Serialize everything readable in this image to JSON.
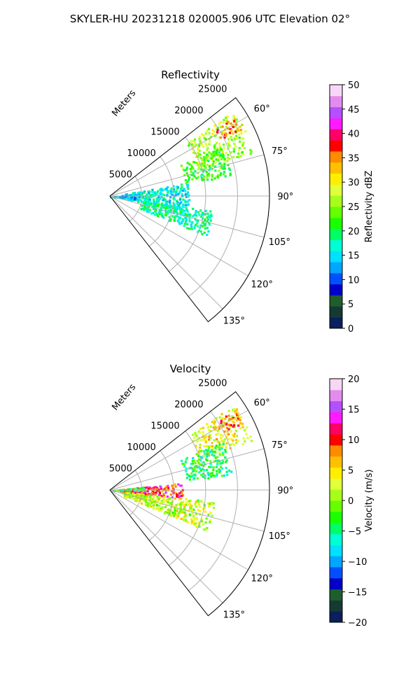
{
  "figure_title": "SKYLER-HU  20231218  020005.906 UTC Elevation 02°",
  "chart_data": [
    {
      "type": "heatmap",
      "projection": "polar-sector",
      "title": "Reflectivity",
      "radial_axis_label": "Meters",
      "radial_ticks": [
        5000,
        10000,
        15000,
        20000,
        25000
      ],
      "radial_tick_labels": [
        "5000",
        "10000",
        "15000",
        "20000",
        "25000"
      ],
      "azimuth_ticks": [
        60,
        75,
        90,
        105,
        120,
        135
      ],
      "azimuth_tick_labels": [
        "60°",
        "75°",
        "90°",
        "105°",
        "120°",
        "135°"
      ],
      "azimuth_range": [
        52,
        142
      ],
      "range_max": 25000,
      "colorbar": {
        "label": "Reflectivity dBZ",
        "range": [
          0,
          50
        ],
        "ticks": [
          0,
          5,
          10,
          15,
          20,
          25,
          30,
          35,
          40,
          45,
          50
        ],
        "tick_labels": [
          "0",
          "5",
          "10",
          "15",
          "20",
          "25",
          "30",
          "35",
          "40",
          "45",
          "50"
        ],
        "colors": [
          "#0a1f5c",
          "#153a34",
          "#1e5e2c",
          "#0000c8",
          "#0050ff",
          "#00a6ff",
          "#00e0ff",
          "#00ffd2",
          "#00ff64",
          "#1aff00",
          "#66ff00",
          "#a6ff1a",
          "#e1ff3a",
          "#ffee00",
          "#ffc000",
          "#ff8c00",
          "#ff0000",
          "#ff0066",
          "#ff1aff",
          "#b450ff",
          "#e48cee",
          "#f7d7f5"
        ]
      },
      "echo_regions": [
        {
          "az": [
            55,
            72
          ],
          "r": [
            14500,
            23500
          ],
          "value": 26
        },
        {
          "az": [
            57,
            63
          ],
          "r": [
            19500,
            23000
          ],
          "value": 36
        },
        {
          "az": [
            66,
            80
          ],
          "r": [
            12000,
            19000
          ],
          "value": 22
        },
        {
          "az": [
            80,
            100
          ],
          "r": [
            2000,
            12000
          ],
          "value": 16
        },
        {
          "az": [
            98,
            112
          ],
          "r": [
            5000,
            16000
          ],
          "value": 18
        },
        {
          "az": [
            85,
            95
          ],
          "r": [
            0,
            4000
          ],
          "value": 14
        }
      ]
    },
    {
      "type": "heatmap",
      "projection": "polar-sector",
      "title": "Velocity",
      "radial_axis_label": "Meters",
      "radial_ticks": [
        5000,
        10000,
        15000,
        20000,
        25000
      ],
      "radial_tick_labels": [
        "5000",
        "10000",
        "15000",
        "20000",
        "25000"
      ],
      "azimuth_ticks": [
        60,
        75,
        90,
        105,
        120,
        135
      ],
      "azimuth_tick_labels": [
        "60°",
        "75°",
        "90°",
        "105°",
        "120°",
        "135°"
      ],
      "azimuth_range": [
        52,
        142
      ],
      "range_max": 25000,
      "colorbar": {
        "label": "Velocity (m/s)",
        "range": [
          -20,
          20
        ],
        "ticks": [
          -20,
          -15,
          -10,
          -5,
          0,
          5,
          10,
          15,
          20
        ],
        "tick_labels": [
          "−20",
          "−15",
          "−10",
          "−5",
          "0",
          "5",
          "10",
          "15",
          "20"
        ],
        "colors": [
          "#0a1f5c",
          "#153a34",
          "#1e5e2c",
          "#0000c8",
          "#0050ff",
          "#00a6ff",
          "#00e0ff",
          "#00ffd2",
          "#00ff64",
          "#1aff00",
          "#66ff00",
          "#a6ff1a",
          "#e1ff3a",
          "#ffee00",
          "#ffc000",
          "#ff8c00",
          "#ff0000",
          "#ff0066",
          "#ff1aff",
          "#b450ff",
          "#e48cee",
          "#f7d7f5"
        ]
      },
      "echo_regions": [
        {
          "az": [
            55,
            70
          ],
          "r": [
            15000,
            23500
          ],
          "value": 4
        },
        {
          "az": [
            57,
            63
          ],
          "r": [
            20000,
            23500
          ],
          "value": 9
        },
        {
          "az": [
            66,
            82
          ],
          "r": [
            12000,
            19000
          ],
          "value": -4
        },
        {
          "az": [
            84,
            96
          ],
          "r": [
            1500,
            11000
          ],
          "value": 11
        },
        {
          "az": [
            96,
            112
          ],
          "r": [
            2000,
            16000
          ],
          "value": 2
        },
        {
          "az": [
            84,
            90
          ],
          "r": [
            0,
            5000
          ],
          "value": -3
        }
      ]
    }
  ]
}
